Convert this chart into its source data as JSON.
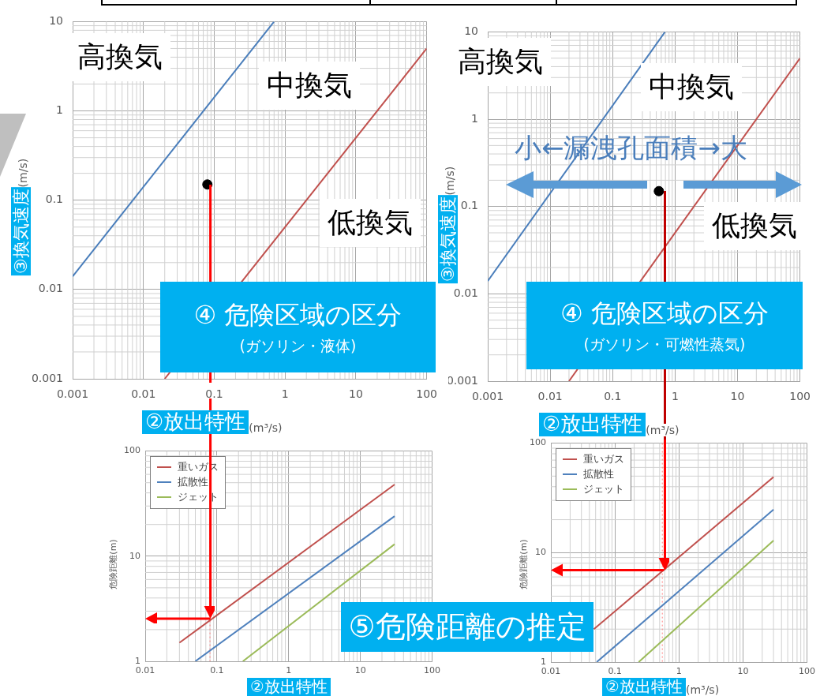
{
  "chart_data": [
    {
      "type": "line",
      "title": "④ 危険区域の区分",
      "subtitle": "(ガソリン・液体)",
      "xlabel": "②放出特性(m³/s)",
      "ylabel": "③換気速度(m/s)",
      "log": "xy",
      "xlim": [
        0.001,
        100
      ],
      "ylim": [
        0.001,
        10
      ],
      "xticks": [
        0.001,
        0.01,
        0.1,
        1,
        10,
        100
      ],
      "yticks": [
        0.001,
        0.01,
        0.1,
        1,
        10
      ],
      "grid": true,
      "legend": false,
      "series": [
        {
          "color": "#4a7ebb",
          "x": [
            0.001,
            0.7
          ],
          "values": [
            0.014,
            10
          ]
        },
        {
          "color": "#c0504d",
          "x": [
            0.02,
            100
          ],
          "values": [
            0.001,
            5
          ]
        },
        {
          "type": "scatter",
          "color": "#000000",
          "x": [
            0.08
          ],
          "values": [
            0.15
          ]
        }
      ],
      "annotations": [
        "高換気",
        "中換気",
        "低換気"
      ]
    },
    {
      "type": "line",
      "title": "④ 危険区域の区分",
      "subtitle": "(ガソリン・可燃性蒸気)",
      "xlabel": "②放出特性(m³/s)",
      "ylabel": "③換気速度(m/s)",
      "log": "xy",
      "xlim": [
        0.001,
        100
      ],
      "ylim": [
        0.001,
        10
      ],
      "xticks": [
        0.001,
        0.01,
        0.1,
        1,
        10,
        100
      ],
      "yticks": [
        0.001,
        0.01,
        0.1,
        1,
        10
      ],
      "grid": true,
      "legend": false,
      "series": [
        {
          "color": "#4a7ebb",
          "x": [
            0.001,
            0.69
          ],
          "values": [
            0.014,
            10
          ]
        },
        {
          "color": "#c0504d",
          "x": [
            0.02,
            100
          ],
          "values": [
            0.001,
            5
          ]
        },
        {
          "type": "scatter",
          "color": "#000000",
          "x": [
            0.55
          ],
          "values": [
            0.15
          ]
        }
      ],
      "annotations": [
        "高換気",
        "中換気",
        "低換気",
        "小←漏洩孔面積→大"
      ]
    },
    {
      "type": "line",
      "xlabel": "②放出特性",
      "ylabel": "危険距離(m)",
      "log": "xy",
      "xlim": [
        0.01,
        100
      ],
      "ylim": [
        1,
        100
      ],
      "xticks": [
        0.01,
        0.1,
        1,
        10,
        100
      ],
      "yticks": [
        1,
        10,
        100
      ],
      "grid": true,
      "legend": "top left",
      "series": [
        {
          "name": "重いガス",
          "color": "#c0504d",
          "x": [
            0.03,
            30
          ],
          "values": [
            1.5,
            48
          ]
        },
        {
          "name": "拡散性",
          "color": "#4f81bd",
          "x": [
            0.05,
            30
          ],
          "values": [
            1,
            24
          ]
        },
        {
          "name": "ジェット",
          "color": "#9bbb59",
          "x": [
            0.23,
            30
          ],
          "values": [
            1,
            13
          ]
        }
      ],
      "ref_lines": [
        {
          "axis": "x",
          "value": 0.08,
          "color": "#ff8080",
          "line_style": "dotted"
        }
      ],
      "annotations": [
        "⑤危険距離の推定"
      ]
    },
    {
      "type": "line",
      "xlabel": "②放出特性(m³/s)",
      "ylabel": "危険距離(m)",
      "log": "xy",
      "xlim": [
        0.01,
        100
      ],
      "ylim": [
        1,
        100
      ],
      "xticks": [
        0.01,
        0.1,
        1,
        10,
        100
      ],
      "yticks": [
        1,
        10,
        100
      ],
      "grid": true,
      "legend": "top left",
      "series": [
        {
          "name": "重いガス",
          "color": "#c0504d",
          "x": [
            0.047,
            30
          ],
          "values": [
            2,
            49
          ]
        },
        {
          "name": "拡散性",
          "color": "#4f81bd",
          "x": [
            0.052,
            30
          ],
          "values": [
            1,
            24.7
          ]
        },
        {
          "name": "ジェット",
          "color": "#9bbb59",
          "x": [
            0.235,
            30
          ],
          "values": [
            1,
            12.9
          ]
        }
      ],
      "ref_lines": [
        {
          "axis": "x",
          "value": 0.55,
          "color": "#ff8080",
          "line_style": "dotted"
        }
      ]
    }
  ]
}
